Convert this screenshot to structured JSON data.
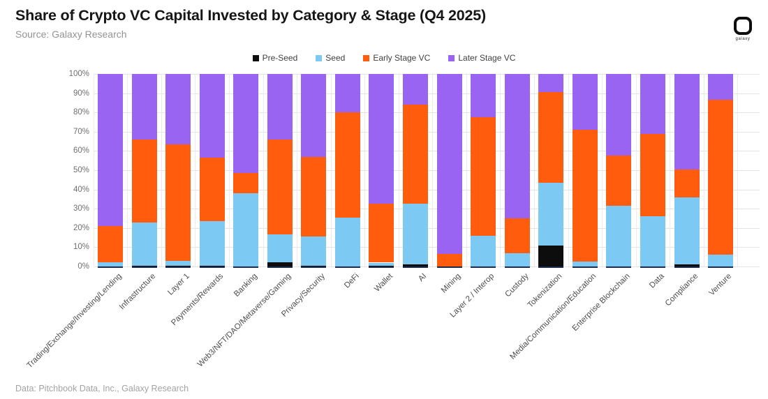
{
  "header": {
    "title": "Share of Crypto VC Capital Invested by Category & Stage (Q4 2025)",
    "source": "Source: Galaxy Research",
    "logo_text": "galaxy"
  },
  "footer": {
    "note": "Data: Pitchbook Data, Inc., Galaxy Research"
  },
  "colors": {
    "pre_seed": "#0d0d0d",
    "seed": "#7cc9f4",
    "early_stage": "#ff5c0d",
    "later_stage": "#9a64f2",
    "axis_base": "#1c2b4a",
    "gridline": "#e4e4e4"
  },
  "chart_data": {
    "type": "bar",
    "stacked": true,
    "units": "% share of capital invested",
    "title": "Share of Crypto VC Capital Invested by Category & Stage (Q4 2025)",
    "xlabel": "",
    "ylabel": "",
    "ylim": [
      0,
      100
    ],
    "grid": true,
    "legend_position": "top",
    "y_ticks": [
      "0%",
      "10%",
      "20%",
      "30%",
      "40%",
      "50%",
      "60%",
      "70%",
      "80%",
      "90%",
      "100%"
    ],
    "categories": [
      "Trading/Exchange/Investing/Lending",
      "Infrastructure",
      "Layer 1",
      "Payments/Rewards",
      "Banking",
      "Web3/NFT/DAO/Metaverse/Gaming",
      "Privacy/Security",
      "DeFi",
      "Wallet",
      "AI",
      "Mining",
      "Layer 2 / Interop",
      "Custody",
      "Tokenization",
      "Media/Communication/Education",
      "Enterprise Blockchain",
      "Data",
      "Compliance",
      "Venture"
    ],
    "series": [
      {
        "name": "Pre-Seed",
        "color": "#0d0d0d",
        "values": [
          0,
          0.5,
          0.5,
          0.5,
          0,
          2,
          0.5,
          0,
          0.5,
          1,
          0,
          0,
          0,
          11,
          0,
          0,
          0,
          1,
          0
        ]
      },
      {
        "name": "Seed",
        "color": "#7cc9f4",
        "values": [
          2,
          22.5,
          2.5,
          23,
          38,
          14.5,
          15,
          25.5,
          1.5,
          31.5,
          0,
          16,
          7,
          32.5,
          2.5,
          31.5,
          26,
          35,
          6
        ]
      },
      {
        "name": "Early Stage VC",
        "color": "#ff5c0d",
        "values": [
          19,
          43,
          60.5,
          33,
          10.5,
          49.5,
          41.5,
          54.5,
          30.5,
          51.5,
          6.5,
          61.5,
          18,
          47,
          68.5,
          26,
          43,
          14.5,
          80.5
        ]
      },
      {
        "name": "Later Stage VC",
        "color": "#9a64f2",
        "values": [
          79,
          34,
          36.5,
          43.5,
          51.5,
          34,
          43,
          20,
          67.5,
          16,
          93.5,
          22.5,
          75,
          9.5,
          29,
          42.5,
          31,
          49.5,
          13.5
        ]
      }
    ]
  }
}
